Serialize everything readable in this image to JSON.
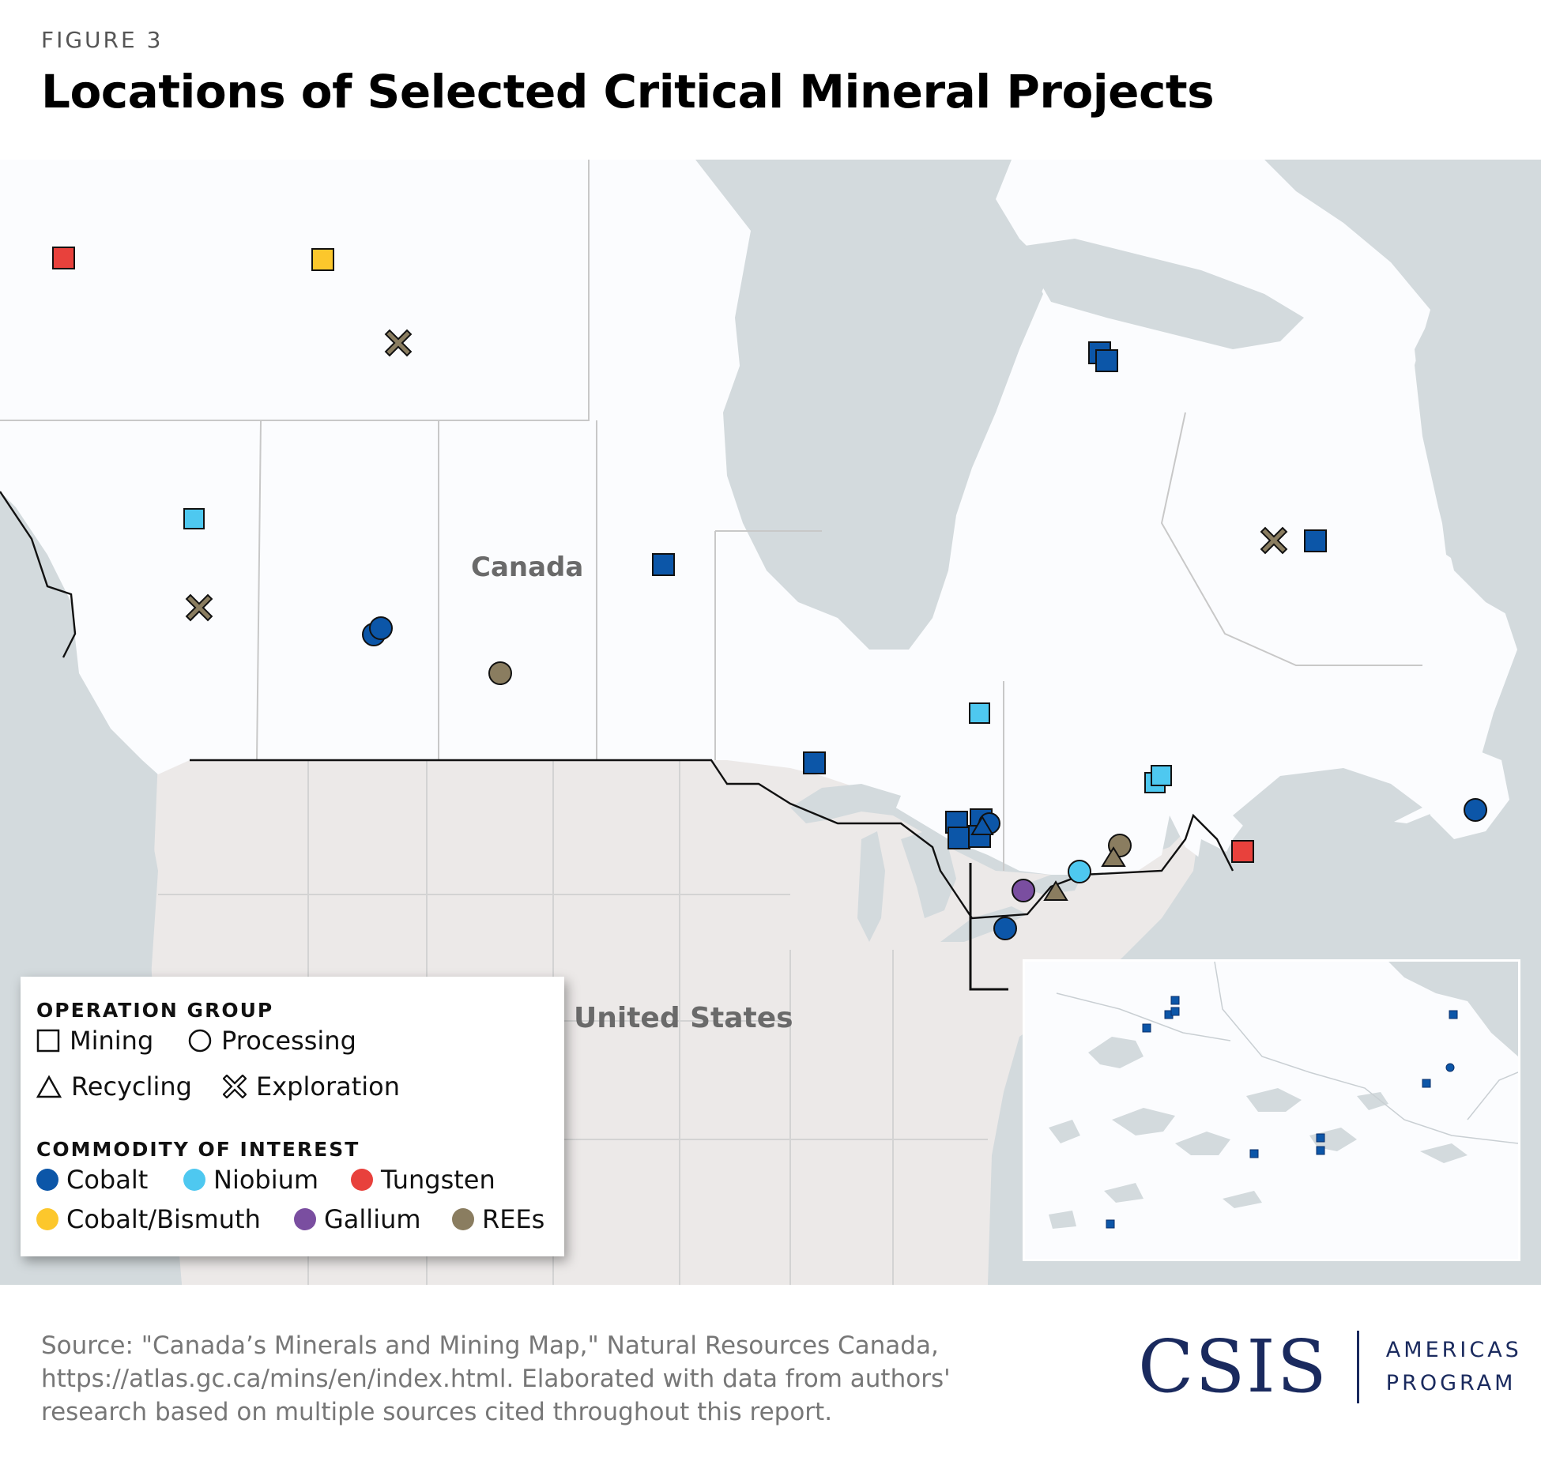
{
  "figure_label": "FIGURE 3",
  "title": "Locations of Selected Critical Mineral Projects",
  "map_labels": {
    "canada": "Canada",
    "united_states": "United States"
  },
  "legend": {
    "operation_heading": "OPERATION GROUP",
    "operations": [
      {
        "label": "Mining",
        "shape": "square"
      },
      {
        "label": "Processing",
        "shape": "circle"
      },
      {
        "label": "Recycling",
        "shape": "triangle"
      },
      {
        "label": "Exploration",
        "shape": "x"
      }
    ],
    "commodity_heading": "COMMODITY OF INTEREST",
    "commodities": [
      {
        "label": "Cobalt",
        "color": "#0c56a8"
      },
      {
        "label": "Niobium",
        "color": "#4ec8f0"
      },
      {
        "label": "Tungsten",
        "color": "#e8413c"
      },
      {
        "label": "Cobalt/Bismuth",
        "color": "#fcc72c"
      },
      {
        "label": "Gallium",
        "color": "#7a4ea0"
      },
      {
        "label": "REEs",
        "color": "#8a7d60"
      }
    ]
  },
  "colors": {
    "canada_land": "#fbfcfe",
    "us_land": "#ece9e8",
    "water": "#d3dadd",
    "border": "#111111",
    "brand": "#1a2a5e"
  },
  "source": "Source: \"Canada’s Minerals and Mining Map,\" Natural Resources Canada, https://atlas.gc.ca/mins/en/index.html. Elaborated with data from authors' research based on multiple sources cited throughout this report.",
  "logo": {
    "wordmark": "CSIS",
    "program_line1": "AMERICAS",
    "program_line2": "PROGRAM"
  }
}
